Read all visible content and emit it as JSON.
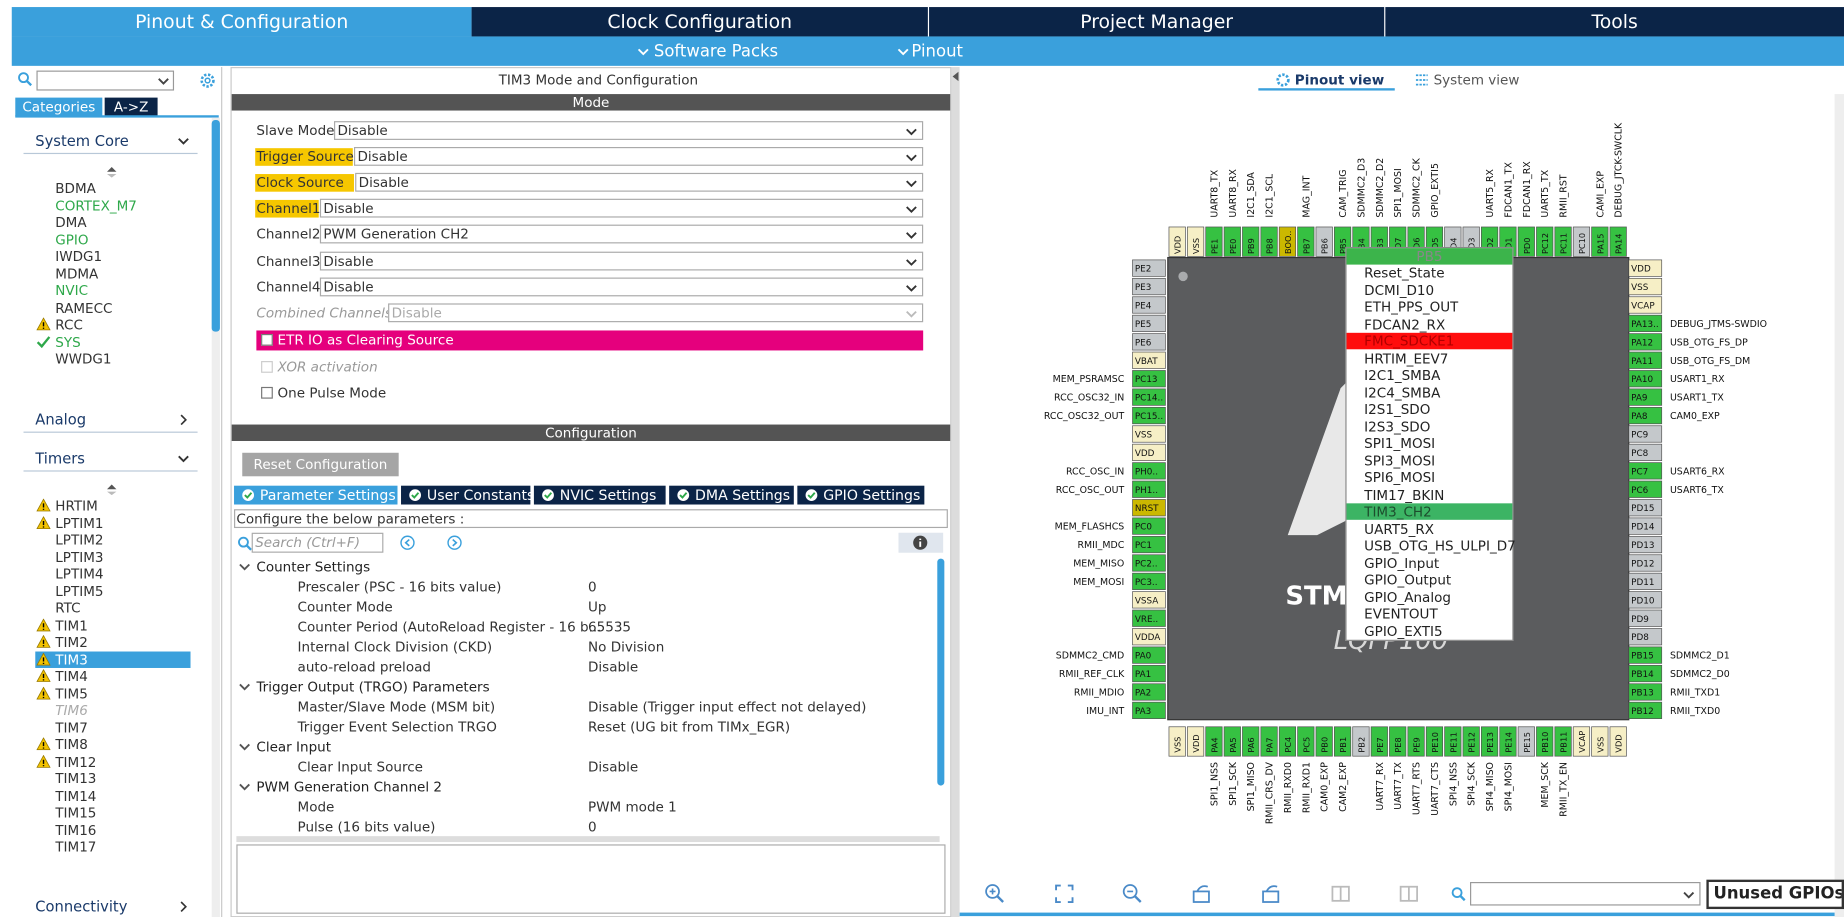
{
  "tabs": [
    "Pinout & Configuration",
    "Clock Configuration",
    "Project Manager",
    "Tools"
  ],
  "subtabs": [
    "Software Packs",
    "Pinout"
  ],
  "left_panel": {
    "category_tabs": [
      "Categories",
      "A->Z"
    ],
    "sections": [
      {
        "title": "System Core",
        "items": [
          {
            "label": "BDMA"
          },
          {
            "label": "CORTEX_M7",
            "state": "green"
          },
          {
            "label": "DMA"
          },
          {
            "label": "GPIO",
            "state": "green"
          },
          {
            "label": "IWDG1"
          },
          {
            "label": "MDMA"
          },
          {
            "label": "NVIC",
            "state": "green"
          },
          {
            "label": "RAMECC"
          },
          {
            "label": "RCC",
            "state": "warning"
          },
          {
            "label": "SYS",
            "state": "check"
          },
          {
            "label": "WWDG1"
          }
        ]
      },
      {
        "title": "Analog"
      },
      {
        "title": "Timers",
        "items": [
          {
            "label": "HRTIM",
            "state": "warning"
          },
          {
            "label": "LPTIM1",
            "state": "warning"
          },
          {
            "label": "LPTIM2"
          },
          {
            "label": "LPTIM3"
          },
          {
            "label": "LPTIM4"
          },
          {
            "label": "LPTIM5"
          },
          {
            "label": "RTC"
          },
          {
            "label": "TIM1",
            "state": "warning"
          },
          {
            "label": "TIM2",
            "state": "warning"
          },
          {
            "label": "TIM3",
            "state": "warning",
            "selected": true
          },
          {
            "label": "TIM4",
            "state": "warning"
          },
          {
            "label": "TIM5",
            "state": "warning"
          },
          {
            "label": "TIM6",
            "state": "disabled"
          },
          {
            "label": "TIM7"
          },
          {
            "label": "TIM8",
            "state": "warning"
          },
          {
            "label": "TIM12",
            "state": "warning"
          },
          {
            "label": "TIM13"
          },
          {
            "label": "TIM14"
          },
          {
            "label": "TIM15"
          },
          {
            "label": "TIM16"
          },
          {
            "label": "TIM17"
          }
        ]
      },
      {
        "title": "Connectivity"
      }
    ]
  },
  "mode_panel": {
    "title": "TIM3 Mode and Configuration",
    "mode_header": "Mode",
    "fields": [
      {
        "label": "Slave Mode",
        "value": "Disable"
      },
      {
        "label": "Trigger Source",
        "value": "Disable",
        "highlight": true
      },
      {
        "label": "Clock Source",
        "value": "Disable",
        "highlight": true
      },
      {
        "label": "Channel1",
        "value": "Disable",
        "highlight": true
      },
      {
        "label": "Channel2",
        "value": "PWM Generation CH2"
      },
      {
        "label": "Channel3",
        "value": "Disable"
      },
      {
        "label": "Channel4",
        "value": "Disable"
      },
      {
        "label": "Combined Channels",
        "value": "Disable",
        "disabled": true
      }
    ],
    "checkboxes": [
      {
        "label": "ETR IO as Clearing Source",
        "highlight": "#e5007d"
      },
      {
        "label": "XOR activation",
        "disabled": true
      },
      {
        "label": "One Pulse Mode"
      }
    ],
    "config_header": "Configuration",
    "reset_button": "Reset Configuration",
    "config_tabs": [
      "Parameter Settings",
      "User Constants",
      "NVIC Settings",
      "DMA Settings",
      "GPIO Settings"
    ],
    "hint": "Configure the below parameters :",
    "search_placeholder": "Search (Ctrl+F)",
    "groups": [
      {
        "name": "Counter Settings",
        "items": [
          {
            "name": "Prescaler (PSC - 16 bits value)",
            "value": 0
          },
          {
            "name": "Counter Mode",
            "value": "Up"
          },
          {
            "name": "Counter Period (AutoReload Register - 16 b...",
            "value": 65535
          },
          {
            "name": "Internal Clock Division (CKD)",
            "value": "No Division"
          },
          {
            "name": "auto-reload preload",
            "value": "Disable"
          }
        ]
      },
      {
        "name": "Trigger Output (TRGO) Parameters",
        "items": [
          {
            "name": "Master/Slave Mode (MSM bit)",
            "value": "Disable (Trigger input effect not delayed)"
          },
          {
            "name": "Trigger Event Selection TRGO",
            "value": "Reset (UG bit from TIMx_EGR)"
          }
        ]
      },
      {
        "name": "Clear Input",
        "items": [
          {
            "name": "Clear Input Source",
            "value": "Disable"
          }
        ]
      },
      {
        "name": "PWM Generation Channel 2",
        "items": [
          {
            "name": "Mode",
            "value": "PWM mode 1"
          },
          {
            "name": "Pulse (16 bits value)",
            "value": 0
          }
        ]
      }
    ]
  },
  "pinout": {
    "view_tabs": [
      "Pinout view",
      "System view"
    ],
    "chip_texts": [
      "STM",
      "LQFP100"
    ],
    "pin_colors": {
      "green": "#36c142",
      "gray": "#c4c8cb",
      "power": "#f6efc6",
      "boot": "#cbb800"
    },
    "top_pins": [
      {
        "pin": "VDD",
        "state": "power"
      },
      {
        "pin": "VSS",
        "state": "power"
      },
      {
        "pin": "PE1",
        "state": "green",
        "signal": "UART8_TX"
      },
      {
        "pin": "PE0",
        "state": "green",
        "signal": "UART8_RX"
      },
      {
        "pin": "PB9",
        "state": "green",
        "signal": "I2C1_SDA"
      },
      {
        "pin": "PB8",
        "state": "green",
        "signal": "I2C1_SCL"
      },
      {
        "pin": "BOO..",
        "state": "boot"
      },
      {
        "pin": "PB7",
        "state": "green",
        "signal": "MAG_INT"
      },
      {
        "pin": "PB6",
        "state": "gray"
      },
      {
        "pin": "PB5",
        "state": "green",
        "signal": "CAM_TRIG"
      },
      {
        "pin": "PB4",
        "state": "green",
        "signal": "SDMMC2_D3"
      },
      {
        "pin": "PB3",
        "state": "green",
        "signal": "SDMMC2_D2"
      },
      {
        "pin": "PD7",
        "state": "green",
        "signal": "SPI1_MOSI"
      },
      {
        "pin": "PD6",
        "state": "green",
        "signal": "SDMMC2_CK"
      },
      {
        "pin": "PD5",
        "state": "green",
        "signal": "GPIO_EXTI5"
      },
      {
        "pin": "PD4",
        "state": "gray"
      },
      {
        "pin": "PD3",
        "state": "gray"
      },
      {
        "pin": "PD2",
        "state": "green",
        "signal": "UART5_RX"
      },
      {
        "pin": "PD1",
        "state": "green",
        "signal": "FDCAN1_TX"
      },
      {
        "pin": "PD0",
        "state": "green",
        "signal": "FDCAN1_RX"
      },
      {
        "pin": "PC12",
        "state": "green",
        "signal": "UART5_TX"
      },
      {
        "pin": "PC11",
        "state": "green",
        "signal": "RMII_RST"
      },
      {
        "pin": "PC10",
        "state": "gray"
      },
      {
        "pin": "PA15",
        "state": "green",
        "signal": "CAMI_EXP"
      },
      {
        "pin": "PA14",
        "state": "green",
        "signal": "DEBUG_JTCK-SWCLK"
      }
    ],
    "bottom_pins": [
      {
        "pin": "VSS",
        "state": "power"
      },
      {
        "pin": "VDD",
        "state": "power"
      },
      {
        "pin": "PA4",
        "state": "green",
        "signal": "SPI1_NSS"
      },
      {
        "pin": "PA5",
        "state": "green",
        "signal": "SPI1_SCK"
      },
      {
        "pin": "PA6",
        "state": "green",
        "signal": "SPI1_MISO"
      },
      {
        "pin": "PA7",
        "state": "green",
        "signal": "RMII_CRS_DV"
      },
      {
        "pin": "PC4",
        "state": "green",
        "signal": "RMII_RXD0"
      },
      {
        "pin": "PC5",
        "state": "green",
        "signal": "RMII_RXD1"
      },
      {
        "pin": "PB0",
        "state": "green",
        "signal": "CAM0_EXP"
      },
      {
        "pin": "PB1",
        "state": "green",
        "signal": "CAM2_EXP"
      },
      {
        "pin": "PB2",
        "state": "gray"
      },
      {
        "pin": "PE7",
        "state": "green",
        "signal": "UART7_RX"
      },
      {
        "pin": "PE8",
        "state": "green",
        "signal": "UART7_TX"
      },
      {
        "pin": "PE9",
        "state": "green",
        "signal": "UART7_RTS"
      },
      {
        "pin": "PE10",
        "state": "green",
        "signal": "UART7_CTS"
      },
      {
        "pin": "PE11",
        "state": "green",
        "signal": "SPI4_NSS"
      },
      {
        "pin": "PE12",
        "state": "green",
        "signal": "SPI4_SCK"
      },
      {
        "pin": "PE13",
        "state": "green",
        "signal": "SPI4_MISO"
      },
      {
        "pin": "PE14",
        "state": "green",
        "signal": "SPI4_MOSI"
      },
      {
        "pin": "PE15",
        "state": "gray"
      },
      {
        "pin": "PB10",
        "state": "green",
        "signal": "MEM_SCK"
      },
      {
        "pin": "PB11",
        "state": "green",
        "signal": "RMII_TX_EN"
      },
      {
        "pin": "VCAP",
        "state": "power"
      },
      {
        "pin": "VSS",
        "state": "power"
      },
      {
        "pin": "VDD",
        "state": "power"
      }
    ],
    "left_pins": [
      {
        "pin": "PE2",
        "state": "gray"
      },
      {
        "pin": "PE3",
        "state": "gray"
      },
      {
        "pin": "PE4",
        "state": "gray"
      },
      {
        "pin": "PE5",
        "state": "gray"
      },
      {
        "pin": "PE6",
        "state": "gray"
      },
      {
        "pin": "VBAT",
        "state": "power"
      },
      {
        "pin": "PC13",
        "state": "green",
        "signal": "MEM_PSRAMSC"
      },
      {
        "pin": "PC14..",
        "state": "green",
        "signal": "RCC_OSC32_IN"
      },
      {
        "pin": "PC15..",
        "state": "green",
        "signal": "RCC_OSC32_OUT"
      },
      {
        "pin": "VSS",
        "state": "power"
      },
      {
        "pin": "VDD",
        "state": "power"
      },
      {
        "pin": "PH0..",
        "state": "green",
        "signal": "RCC_OSC_IN"
      },
      {
        "pin": "PH1..",
        "state": "green",
        "signal": "RCC_OSC_OUT"
      },
      {
        "pin": "NRST",
        "state": "boot"
      },
      {
        "pin": "PC0",
        "state": "green",
        "signal": "MEM_FLASHCS"
      },
      {
        "pin": "PC1",
        "state": "green",
        "signal": "RMII_MDC"
      },
      {
        "pin": "PC2..",
        "state": "green",
        "signal": "MEM_MISO"
      },
      {
        "pin": "PC3..",
        "state": "green",
        "signal": "MEM_MOSI"
      },
      {
        "pin": "VSSA",
        "state": "power"
      },
      {
        "pin": "VRE..",
        "state": "green"
      },
      {
        "pin": "VDDA",
        "state": "power"
      },
      {
        "pin": "PA0",
        "state": "green",
        "signal": "SDMMC2_CMD"
      },
      {
        "pin": "PA1",
        "state": "green",
        "signal": "RMII_REF_CLK"
      },
      {
        "pin": "PA2",
        "state": "green",
        "signal": "RMII_MDIO"
      },
      {
        "pin": "PA3",
        "state": "green",
        "signal": "IMU_INT"
      }
    ],
    "right_pins": [
      {
        "pin": "VDD",
        "state": "power"
      },
      {
        "pin": "VSS",
        "state": "power"
      },
      {
        "pin": "VCAP",
        "state": "power"
      },
      {
        "pin": "PA13..",
        "state": "green",
        "signal": "DEBUG_JTMS-SWDIO"
      },
      {
        "pin": "PA12",
        "state": "green",
        "signal": "USB_OTG_FS_DP"
      },
      {
        "pin": "PA11",
        "state": "green",
        "signal": "USB_OTG_FS_DM"
      },
      {
        "pin": "PA10",
        "state": "green",
        "signal": "USART1_RX"
      },
      {
        "pin": "PA9",
        "state": "green",
        "signal": "USART1_TX"
      },
      {
        "pin": "PA8",
        "state": "green",
        "signal": "CAM0_EXP"
      },
      {
        "pin": "PC9",
        "state": "gray"
      },
      {
        "pin": "PC8",
        "state": "gray"
      },
      {
        "pin": "PC7",
        "state": "green",
        "signal": "USART6_RX"
      },
      {
        "pin": "PC6",
        "state": "green",
        "signal": "USART6_TX"
      },
      {
        "pin": "PD15",
        "state": "gray"
      },
      {
        "pin": "PD14",
        "state": "gray"
      },
      {
        "pin": "PD13",
        "state": "gray"
      },
      {
        "pin": "PD12",
        "state": "gray"
      },
      {
        "pin": "PD11",
        "state": "gray"
      },
      {
        "pin": "PD10",
        "state": "gray"
      },
      {
        "pin": "PD9",
        "state": "gray"
      },
      {
        "pin": "PD8",
        "state": "gray"
      },
      {
        "pin": "PB15",
        "state": "green",
        "signal": "SDMMC2_D1"
      },
      {
        "pin": "PB14",
        "state": "green",
        "signal": "SDMMC2_D0"
      },
      {
        "pin": "PB13",
        "state": "green",
        "signal": "RMII_TXD1"
      },
      {
        "pin": "PB12",
        "state": "green",
        "signal": "RMII_TXD0"
      }
    ],
    "popup": {
      "pin": "PB5",
      "items": [
        "Reset_State",
        "DCMI_D10",
        "ETH_PPS_OUT",
        "FDCAN2_RX",
        "FMC_SDCKE1",
        "HRTIM_EEV7",
        "I2C1_SMBA",
        "I2C4_SMBA",
        "I2S1_SDO",
        "I2S3_SDO",
        "SPI1_MOSI",
        "SPI3_MOSI",
        "SPI6_MOSI",
        "TIM17_BKIN",
        "TIM3_CH2",
        "UART5_RX",
        "USB_OTG_HS_ULPI_D7",
        "GPIO_Input",
        "GPIO_Output",
        "GPIO_Analog",
        "EVENTOUT",
        "GPIO_EXTI5"
      ],
      "highlights": [
        {
          "index": 4,
          "color": "#ff0d0d"
        },
        {
          "index": 14,
          "color": "#3cb464"
        }
      ]
    },
    "gpio_box": "Unused GPIOs:"
  }
}
